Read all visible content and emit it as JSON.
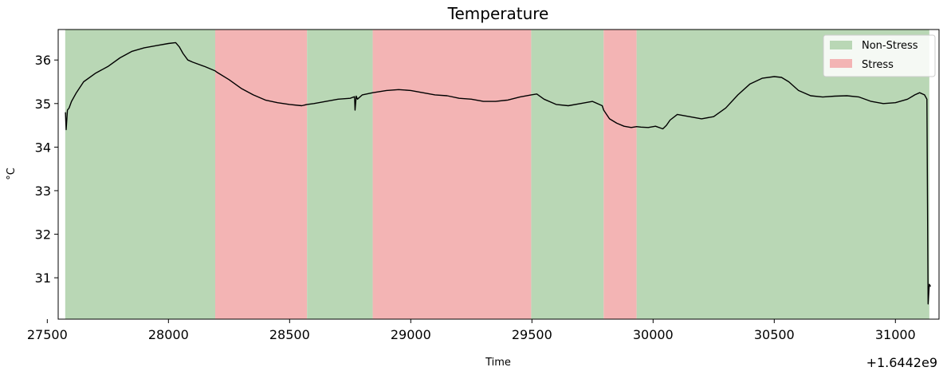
{
  "chart_data": {
    "type": "line",
    "title": "Temperature",
    "xlabel": "Time",
    "ylabel": "°C",
    "x_offset_label": "+1.6442e9",
    "xlim": [
      27545,
      31180
    ],
    "ylim": [
      30.05,
      36.7
    ],
    "xticks": [
      27500,
      28000,
      28500,
      29000,
      29500,
      30000,
      30500,
      31000
    ],
    "yticks": [
      31,
      32,
      33,
      34,
      35,
      36
    ],
    "grid": false,
    "legend": {
      "placement": "top-right",
      "entries": [
        {
          "label": "Non-Stress",
          "color": "#b9d7b5"
        },
        {
          "label": "Stress",
          "color": "#f3b4b4"
        }
      ]
    },
    "spans": [
      {
        "label": "Non-Stress",
        "start": 27574,
        "end": 28193
      },
      {
        "label": "Stress",
        "start": 28193,
        "end": 28572
      },
      {
        "label": "Non-Stress",
        "start": 28572,
        "end": 28843
      },
      {
        "label": "Stress",
        "start": 28843,
        "end": 29497
      },
      {
        "label": "Non-Stress",
        "start": 29497,
        "end": 29796
      },
      {
        "label": "Stress",
        "start": 29796,
        "end": 29932
      },
      {
        "label": "Non-Stress",
        "start": 29932,
        "end": 31140
      }
    ],
    "series": [
      {
        "color": "#000000",
        "x": [
          27575,
          27578,
          27583,
          27590,
          27600,
          27620,
          27650,
          27700,
          27750,
          27800,
          27850,
          27900,
          27950,
          28000,
          28030,
          28045,
          28060,
          28080,
          28100,
          28150,
          28193,
          28200,
          28250,
          28300,
          28350,
          28400,
          28450,
          28500,
          28550,
          28572,
          28600,
          28650,
          28700,
          28750,
          28768,
          28770,
          28775,
          28780,
          28800,
          28843,
          28900,
          28950,
          29000,
          29050,
          29100,
          29150,
          29200,
          29250,
          29300,
          29350,
          29400,
          29450,
          29497,
          29520,
          29550,
          29600,
          29650,
          29700,
          29750,
          29790,
          29796,
          29820,
          29850,
          29880,
          29910,
          29932,
          29950,
          29980,
          30010,
          30040,
          30055,
          30070,
          30100,
          30150,
          30200,
          30250,
          30300,
          30350,
          30400,
          30450,
          30500,
          30530,
          30560,
          30600,
          30650,
          30700,
          30750,
          30800,
          30850,
          30900,
          30950,
          31000,
          31050,
          31080,
          31100,
          31120,
          31130,
          31135,
          31140,
          31145
        ],
        "y": [
          34.8,
          34.4,
          34.85,
          34.9,
          35.05,
          35.25,
          35.5,
          35.7,
          35.85,
          36.05,
          36.2,
          36.28,
          36.33,
          36.38,
          36.4,
          36.3,
          36.15,
          36.0,
          35.95,
          35.85,
          35.75,
          35.72,
          35.55,
          35.35,
          35.2,
          35.08,
          35.02,
          34.98,
          34.95,
          34.98,
          35.0,
          35.05,
          35.1,
          35.12,
          35.16,
          34.85,
          35.17,
          35.1,
          35.2,
          35.25,
          35.3,
          35.32,
          35.3,
          35.25,
          35.2,
          35.18,
          35.12,
          35.1,
          35.05,
          35.05,
          35.08,
          35.15,
          35.2,
          35.22,
          35.1,
          34.98,
          34.95,
          35.0,
          35.05,
          34.95,
          34.85,
          34.65,
          34.55,
          34.48,
          34.45,
          34.47,
          34.46,
          34.45,
          34.48,
          34.42,
          34.5,
          34.62,
          34.75,
          34.7,
          34.65,
          34.7,
          34.9,
          35.2,
          35.45,
          35.58,
          35.62,
          35.6,
          35.5,
          35.3,
          35.18,
          35.15,
          35.17,
          35.18,
          35.15,
          35.05,
          35.0,
          35.02,
          35.1,
          35.2,
          35.25,
          35.2,
          35.1,
          30.4,
          30.85,
          30.8
        ]
      }
    ]
  }
}
